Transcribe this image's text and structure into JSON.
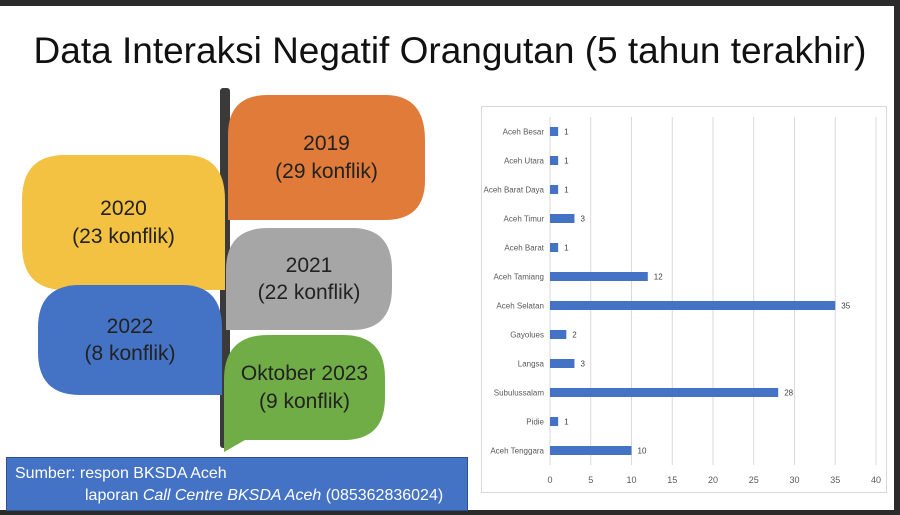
{
  "title": "Data Interaksi Negatif Orangutan (5 tahun terakhir)",
  "leaves": {
    "y2019": {
      "year": "2019",
      "count": "(29 konflik)",
      "color": "#e07b39"
    },
    "y2020": {
      "year": "2020",
      "count": "(23 konflik)",
      "color": "#f4c242"
    },
    "y2021": {
      "year": "2021",
      "count": "(22 konflik)",
      "color": "#a6a6a6"
    },
    "y2022": {
      "year": "2022",
      "count": "(8 konflik)",
      "color": "#4472c4"
    },
    "y2023": {
      "year": "Oktober 2023",
      "count": "(9 konflik)",
      "color": "#70ad47"
    }
  },
  "source": {
    "line1": "Sumber: respon BKSDA Aceh",
    "line2_prefix": "laporan ",
    "line2_italic": "Call Centre BKSDA Aceh",
    "line2_suffix": " (085362836024)"
  },
  "chart_data": {
    "type": "bar",
    "orientation": "horizontal",
    "categories": [
      "Aceh Besar",
      "Aceh Utara",
      "Aceh Barat Daya",
      "Aceh Timur",
      "Aceh Barat",
      "Aceh Tamiang",
      "Aceh Selatan",
      "Gayolues",
      "Langsa",
      "Subulussalam",
      "Pidie",
      "Aceh Tenggara"
    ],
    "values": [
      1,
      1,
      1,
      3,
      1,
      12,
      35,
      2,
      3,
      28,
      1,
      10
    ],
    "xlim": [
      0,
      40
    ],
    "xticks": [
      0,
      5,
      10,
      15,
      20,
      25,
      30,
      35,
      40
    ],
    "grid": true,
    "bar_color": "#4472c4",
    "data_labels": true
  }
}
